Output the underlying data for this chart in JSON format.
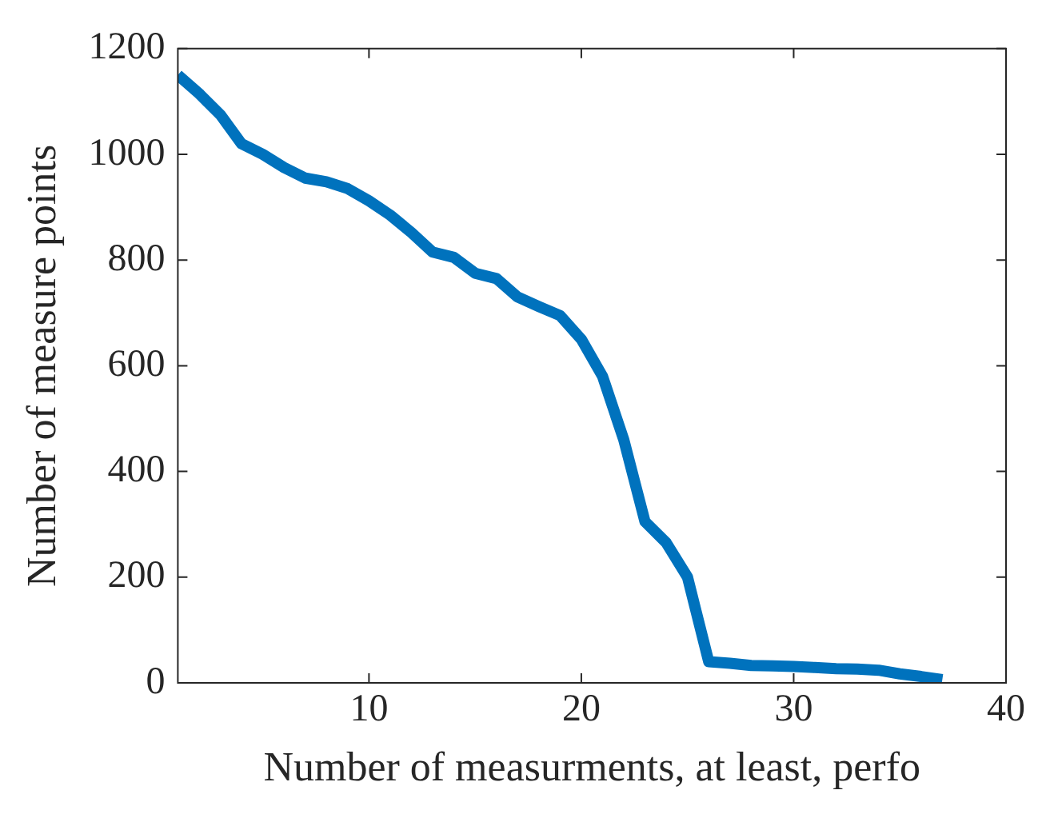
{
  "chart_data": {
    "type": "line",
    "xlabel": "Number of measurments, at least, perfo",
    "ylabel": "Number of measure points",
    "x": [
      1,
      2,
      3,
      4,
      5,
      6,
      7,
      8,
      9,
      10,
      11,
      12,
      13,
      14,
      15,
      16,
      17,
      18,
      19,
      20,
      21,
      22,
      23,
      24,
      25,
      26,
      27,
      28,
      29,
      30,
      31,
      32,
      33,
      34,
      35,
      36,
      37
    ],
    "series": [
      {
        "color": "#0072bd",
        "values": [
          1150,
          1115,
          1075,
          1020,
          1000,
          975,
          955,
          948,
          935,
          912,
          885,
          852,
          815,
          805,
          775,
          765,
          730,
          712,
          695,
          650,
          580,
          460,
          305,
          265,
          200,
          40,
          37,
          33,
          32,
          31,
          29,
          27,
          26,
          24,
          17,
          12,
          6
        ]
      }
    ],
    "xlim": [
      1,
      40
    ],
    "xticks": [
      10,
      20,
      30,
      40
    ],
    "ylim": [
      0,
      1200
    ],
    "yticks": [
      0,
      200,
      400,
      600,
      800,
      1000,
      1200
    ],
    "grid": false,
    "legend": false,
    "marker": "none",
    "line_style": "solid"
  }
}
